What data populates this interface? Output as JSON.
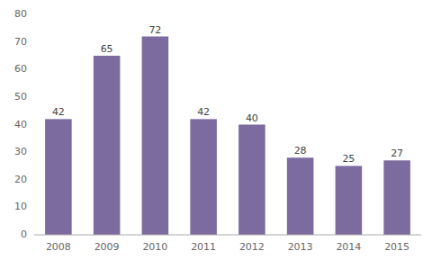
{
  "chart_data": {
    "type": "bar",
    "categories": [
      "2008",
      "2009",
      "2010",
      "2011",
      "2012",
      "2013",
      "2014",
      "2015"
    ],
    "values": [
      42,
      65,
      72,
      42,
      40,
      28,
      25,
      27
    ],
    "color": "#7b6b9e",
    "ylim": [
      0,
      80
    ],
    "yticks": [
      0,
      10,
      20,
      30,
      40,
      50,
      60,
      70,
      80
    ],
    "grid": false,
    "data_labels": true
  }
}
